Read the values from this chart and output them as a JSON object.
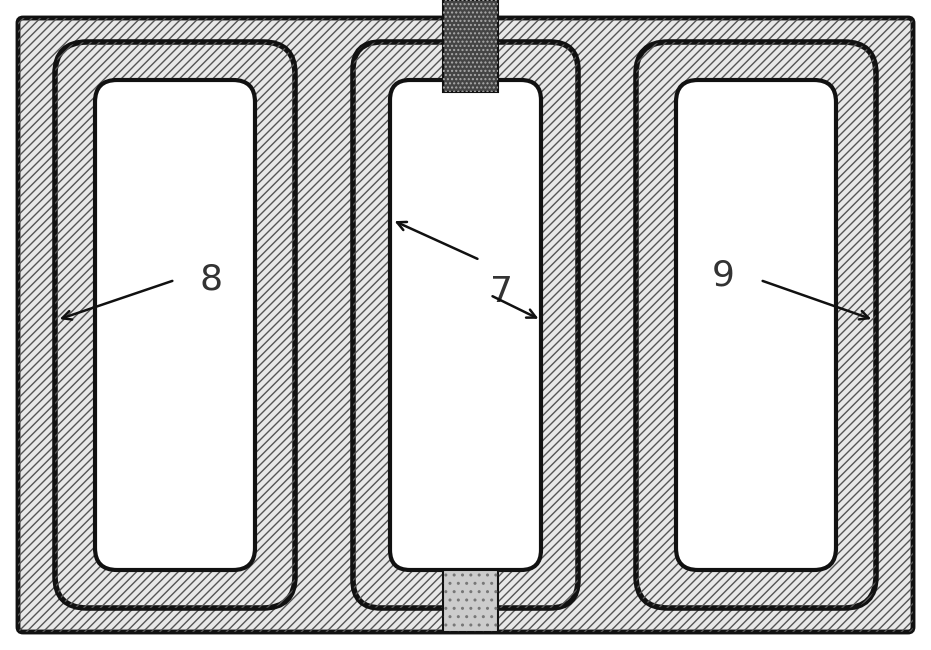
{
  "fig_width": 9.31,
  "fig_height": 6.5,
  "bg_color": "#ffffff",
  "hatch_color": "#555555",
  "hatch_bg": "#e8e8e8",
  "border_color": "#111111",
  "white": "#ffffff",
  "label_8": "8",
  "label_7": "7",
  "label_9": "9",
  "label_fontsize": 26,
  "label_color": "#333333"
}
